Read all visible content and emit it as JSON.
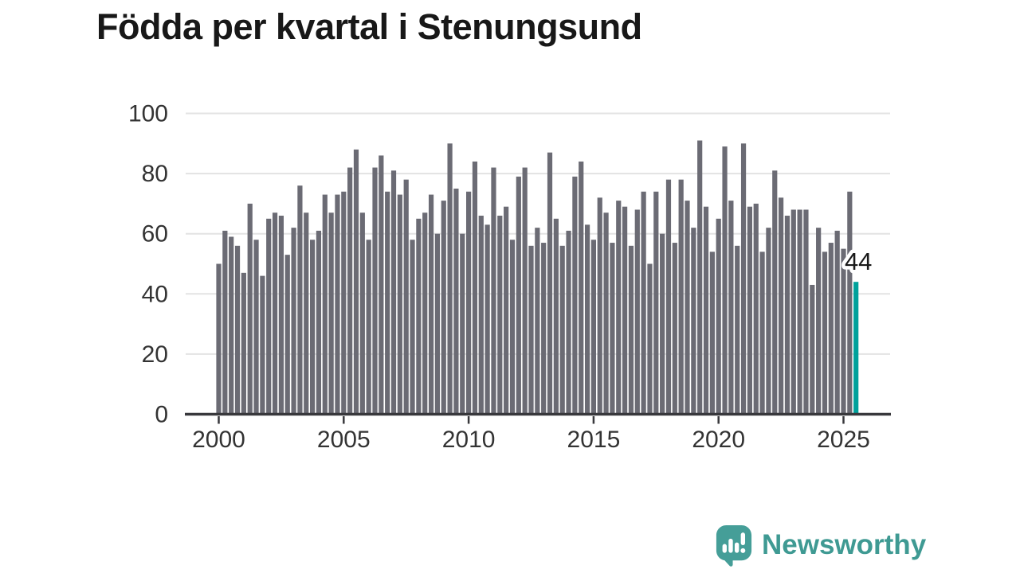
{
  "title": "Födda per kvartal i Stenungsund",
  "footer": {
    "brand": "Newsworthy"
  },
  "chart_data": {
    "type": "bar",
    "title": "Födda per kvartal i Stenungsund",
    "x_period": "quarterly",
    "x_start": "2000-Q1",
    "x_end": "2025-Q3",
    "x_start_year": 2000,
    "values": [
      50,
      61,
      59,
      56,
      47,
      70,
      58,
      46,
      65,
      67,
      66,
      53,
      62,
      76,
      67,
      58,
      61,
      73,
      67,
      73,
      74,
      82,
      88,
      67,
      58,
      82,
      86,
      74,
      81,
      73,
      78,
      58,
      65,
      67,
      73,
      60,
      71,
      90,
      75,
      60,
      74,
      84,
      66,
      63,
      82,
      66,
      69,
      58,
      79,
      82,
      56,
      62,
      57,
      87,
      65,
      56,
      61,
      79,
      84,
      63,
      58,
      72,
      67,
      57,
      71,
      69,
      56,
      68,
      74,
      50,
      74,
      60,
      78,
      57,
      78,
      71,
      62,
      91,
      69,
      54,
      65,
      89,
      71,
      56,
      90,
      69,
      70,
      54,
      62,
      81,
      72,
      66,
      68,
      68,
      68,
      43,
      62,
      54,
      57,
      61,
      55,
      74,
      44
    ],
    "highlight_last": true,
    "highlight_last_value": 44,
    "annotation_label": "44",
    "xticks": [
      2000,
      2005,
      2010,
      2015,
      2020,
      2025
    ],
    "yticks": [
      0,
      20,
      40,
      60,
      80,
      100
    ],
    "ylim": [
      0,
      100
    ],
    "grid": true,
    "legend": "none",
    "bar_color": "#6b6b74",
    "highlight_color": "#00a19b",
    "axis_color": "#38383c",
    "tick_label_color": "#333333",
    "gridline_color": "#e3e3e3",
    "annotation_text_color": "#191919",
    "annotation_halo_color": "#ffffff"
  }
}
